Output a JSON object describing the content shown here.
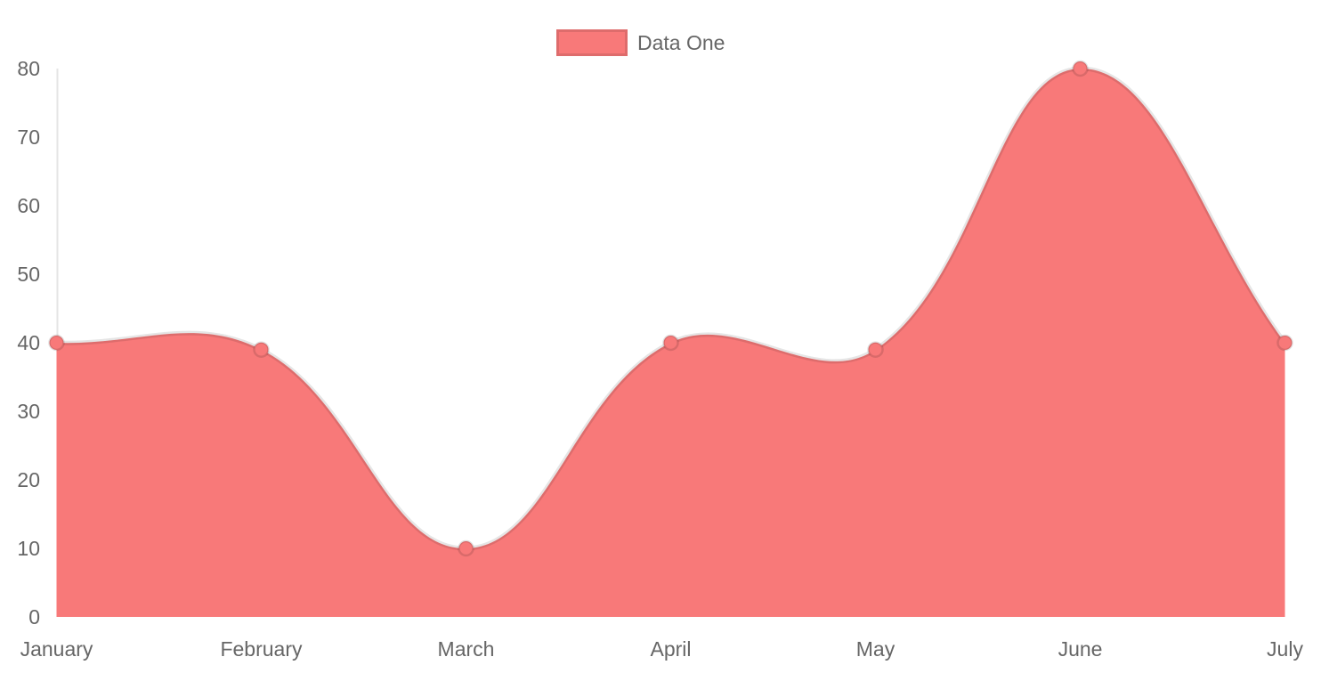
{
  "chart_data": {
    "type": "area",
    "categories": [
      "January",
      "February",
      "March",
      "April",
      "May",
      "June",
      "July"
    ],
    "series": [
      {
        "name": "Data One",
        "values": [
          40,
          39,
          10,
          40,
          39,
          80,
          40
        ]
      }
    ],
    "y_ticks": [
      0,
      10,
      20,
      30,
      40,
      50,
      60,
      70,
      80
    ],
    "ylim": [
      0,
      80
    ],
    "grid": false,
    "legend_position": "top",
    "line_tension": 0.4,
    "colors": {
      "series_fill": "#f87979",
      "series_line": "rgba(0,0,0,0.10)",
      "point_border": "rgba(0,0,0,0.12)",
      "axis_line": "rgba(0,0,0,0.10)",
      "axis_text": "#666666"
    }
  }
}
